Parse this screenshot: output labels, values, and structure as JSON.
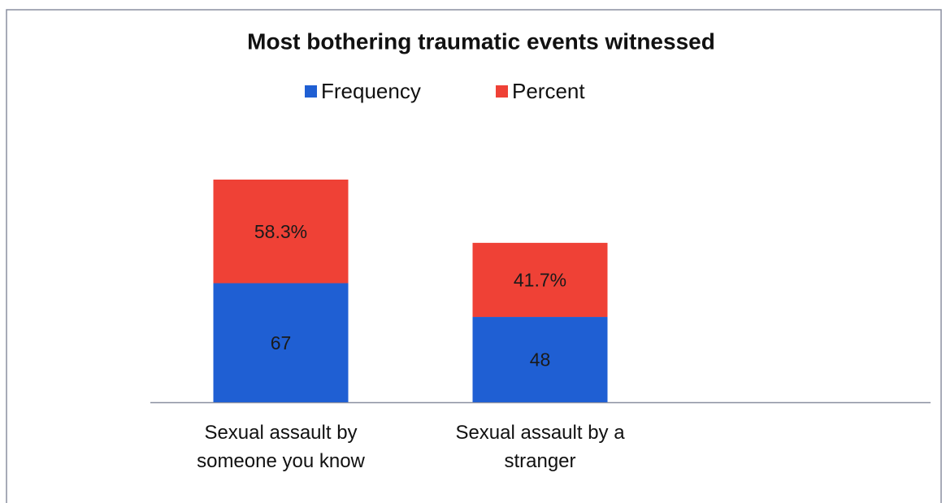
{
  "chart_data": {
    "type": "stacked-bar",
    "title": "Most bothering traumatic events witnessed",
    "categories": [
      "Sexual assault by someone you know",
      "Sexual assault by a stranger"
    ],
    "series": [
      {
        "name": "Frequency",
        "color": "#1f5fd3",
        "values": [
          67,
          48
        ]
      },
      {
        "name": "Percent",
        "color": "#ef4136",
        "values": [
          58.3,
          41.7
        ],
        "value_labels": [
          "58.3%",
          "41.7%"
        ]
      }
    ],
    "legend": "top"
  }
}
